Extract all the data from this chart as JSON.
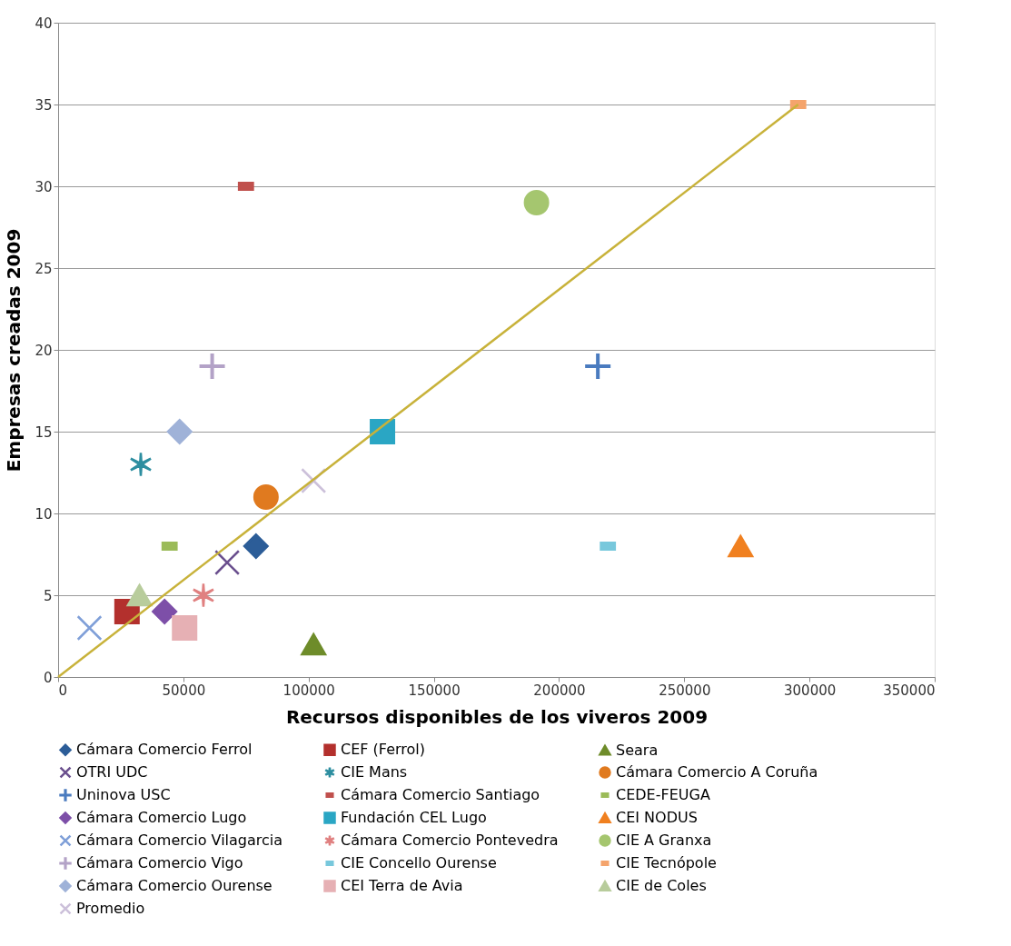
{
  "chart_data": {
    "type": "scatter",
    "xlabel": "Recursos disponibles de los viveros 2009",
    "ylabel": "Empresas creadas 2009",
    "xlim": [
      0,
      350000
    ],
    "xticks": [
      0,
      50000,
      100000,
      150000,
      200000,
      250000,
      300000,
      350000
    ],
    "ylim": [
      0,
      40
    ],
    "yticks": [
      0,
      5,
      10,
      15,
      20,
      25,
      30,
      35,
      40
    ],
    "grid": "y",
    "legend": "bottom",
    "series": [
      {
        "name": "Cámara Comercio Ferrol",
        "color": "#2c5d98",
        "marker": "diamond",
        "x": [
          79000
        ],
        "values": [
          8
        ]
      },
      {
        "name": "CEF (Ferrol)",
        "color": "#b3302d",
        "marker": "square",
        "x": [
          27500
        ],
        "values": [
          4
        ]
      },
      {
        "name": "Seara",
        "color": "#6e8c2a",
        "marker": "triangle",
        "x": [
          102000
        ],
        "values": [
          2
        ]
      },
      {
        "name": "OTRI UDC",
        "color": "#6a4f8e",
        "marker": "x",
        "x": [
          67500
        ],
        "values": [
          7
        ]
      },
      {
        "name": "CIE Mans",
        "color": "#2d8ea0",
        "marker": "cross",
        "x": [
          33000
        ],
        "values": [
          13
        ]
      },
      {
        "name": "Cámara Comercio A Coruña",
        "color": "#e07a1f",
        "marker": "circle",
        "x": [
          83000
        ],
        "values": [
          11
        ]
      },
      {
        "name": "Uninova USC",
        "color": "#4a7bbf",
        "marker": "plus",
        "x": [
          215500
        ],
        "values": [
          19
        ]
      },
      {
        "name": "Cámara Comercio Santiago",
        "color": "#c0504d",
        "marker": "rectangle",
        "x": [
          75000
        ],
        "values": [
          30
        ]
      },
      {
        "name": "CEDE-FEUGA",
        "color": "#9bbb59",
        "marker": "rectangle",
        "x": [
          44500
        ],
        "values": [
          8
        ]
      },
      {
        "name": "Cámara Comercio Lugo",
        "color": "#7d4fa8",
        "marker": "diamond",
        "x": [
          42500
        ],
        "values": [
          4
        ]
      },
      {
        "name": "Fundación CEL Lugo",
        "color": "#2aa6c4",
        "marker": "square",
        "x": [
          129500
        ],
        "values": [
          15
        ]
      },
      {
        "name": "CEI NODUS",
        "color": "#f08020",
        "marker": "triangle",
        "x": [
          272500
        ],
        "values": [
          8
        ]
      },
      {
        "name": "Cámara Comercio Vilagarcia",
        "color": "#7f9fd8",
        "marker": "x",
        "x": [
          12500
        ],
        "values": [
          3
        ]
      },
      {
        "name": "Cámara Comercio Pontevedra",
        "color": "#e08080",
        "marker": "cross",
        "x": [
          58000
        ],
        "values": [
          5
        ]
      },
      {
        "name": "CIE A Granxa",
        "color": "#a5c66f",
        "marker": "circle",
        "x": [
          191000
        ],
        "values": [
          29
        ]
      },
      {
        "name": "Cámara Comercio Vigo",
        "color": "#b3a2c7",
        "marker": "plus",
        "x": [
          61500
        ],
        "values": [
          19
        ]
      },
      {
        "name": "CIE Concello Ourense",
        "color": "#78c8dc",
        "marker": "rectangle",
        "x": [
          219500
        ],
        "values": [
          8
        ]
      },
      {
        "name": "CIE Tecnópole",
        "color": "#f4a46c",
        "marker": "rectangle",
        "x": [
          295500
        ],
        "values": [
          35
        ]
      },
      {
        "name": "Cámara Comercio Ourense",
        "color": "#9fb2d8",
        "marker": "diamond",
        "x": [
          48500
        ],
        "values": [
          15
        ]
      },
      {
        "name": "CEI Terra de Avia",
        "color": "#e6b0b4",
        "marker": "square",
        "x": [
          50500
        ],
        "values": [
          3
        ]
      },
      {
        "name": "CIE de Coles",
        "color": "#b8cc9c",
        "marker": "triangle",
        "x": [
          32500
        ],
        "values": [
          5
        ]
      },
      {
        "name": "Promedio",
        "color": "#ccc0da",
        "marker": "x",
        "x": [
          102000
        ],
        "values": [
          12
        ]
      },
      {
        "type": "line",
        "color": "#c8b23a",
        "x": [
          0,
          295500
        ],
        "values": [
          0,
          35
        ]
      }
    ]
  }
}
